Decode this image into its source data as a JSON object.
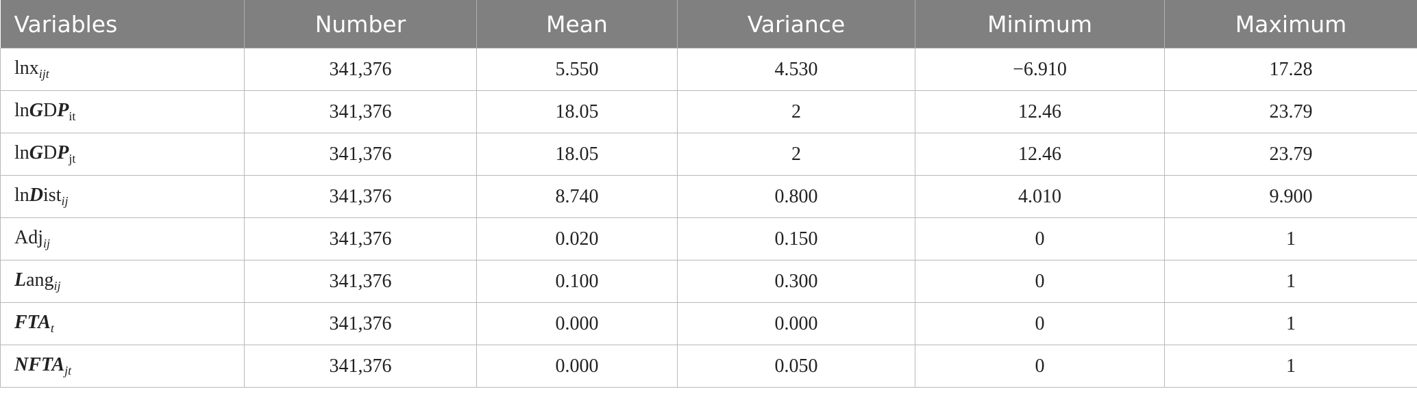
{
  "table": {
    "header": [
      "Variables",
      "Number",
      "Mean",
      "Variance",
      "Minimum",
      "Maximum"
    ],
    "rows": [
      [
        [
          {
            "text": "lnx",
            "style": "roman"
          },
          {
            "text": "ijt",
            "style": "sub-italic"
          }
        ],
        "341,376",
        "5.550",
        "4.530",
        "−6.910",
        "17.28"
      ],
      [
        [
          {
            "text": "ln",
            "style": "roman"
          },
          {
            "text": "G",
            "style": "italic"
          },
          {
            "text": "D",
            "style": "roman"
          },
          {
            "text": "P",
            "style": "italic"
          },
          {
            "text": "it",
            "style": "sub"
          }
        ],
        "341,376",
        "18.05",
        "2",
        "12.46",
        "23.79"
      ],
      [
        [
          {
            "text": "ln",
            "style": "roman"
          },
          {
            "text": "G",
            "style": "italic"
          },
          {
            "text": "D",
            "style": "roman"
          },
          {
            "text": "P",
            "style": "italic"
          },
          {
            "text": "jt",
            "style": "sub"
          }
        ],
        "341,376",
        "18.05",
        "2",
        "12.46",
        "23.79"
      ],
      [
        [
          {
            "text": "ln",
            "style": "roman"
          },
          {
            "text": "D",
            "style": "italic"
          },
          {
            "text": "ist",
            "style": "roman"
          },
          {
            "text": "ij",
            "style": "sub-italic"
          }
        ],
        "341,376",
        "8.740",
        "0.800",
        "4.010",
        "9.900"
      ],
      [
        [
          {
            "text": "Adj",
            "style": "roman"
          },
          {
            "text": "ij",
            "style": "sub-italic"
          }
        ],
        "341,376",
        "0.020",
        "0.150",
        "0",
        "1"
      ],
      [
        [
          {
            "text": "L",
            "style": "italic"
          },
          {
            "text": "ang",
            "style": "roman"
          },
          {
            "text": "ij",
            "style": "sub-italic"
          }
        ],
        "341,376",
        "0.100",
        "0.300",
        "0",
        "1"
      ],
      [
        [
          {
            "text": "FTA",
            "style": "italic"
          },
          {
            "text": "t",
            "style": "sub-italic"
          }
        ],
        "341,376",
        "0.000",
        "0.000",
        "0",
        "1"
      ],
      [
        [
          {
            "text": "NFTA",
            "style": "italic"
          },
          {
            "text": "jt",
            "style": "sub-italic"
          }
        ],
        "341,376",
        "0.000",
        "0.050",
        "0",
        "1"
      ]
    ]
  }
}
